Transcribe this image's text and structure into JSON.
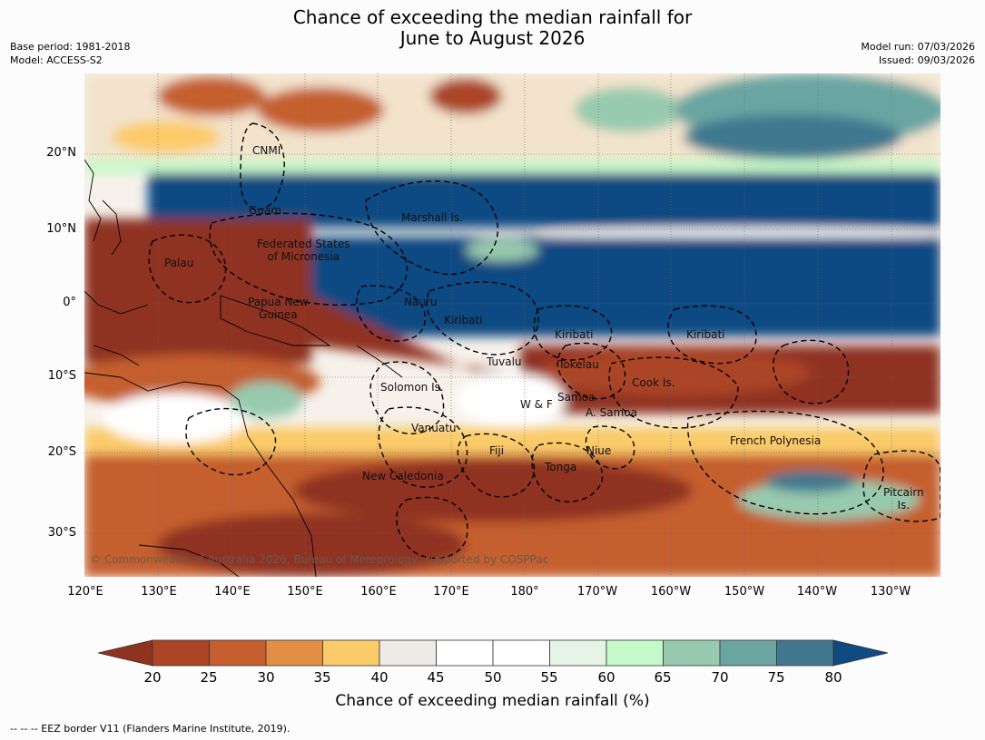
{
  "title": "Chance of exceeding the median rainfall for\nJune to August 2026",
  "base_period": "Base period: 1981-2018",
  "model": "Model: ACCESS-S2",
  "model_run": "Model run: 07/03/2026",
  "issued": "Issued: 09/03/2026",
  "lat_labels": [
    "20°N",
    "10°N",
    "0°",
    "10°S",
    "20°S",
    "30°S"
  ],
  "lon_labels": [
    "120°E",
    "130°E",
    "140°E",
    "150°E",
    "160°E",
    "170°E",
    "180°",
    "170°W",
    "160°W",
    "150°W",
    "140°W",
    "130°W"
  ],
  "places": [
    "CNMI",
    "Guam",
    "Marshall Is.",
    "Federated States\nof Micronesia",
    "Palau",
    "Papua New\nGuinea",
    "Nauru",
    "Kiribati",
    "Kiribati",
    "Kiribati",
    "Tuvalu",
    "Tokelau",
    "Solomon Is.",
    "Samoa",
    "W & F",
    "A. Samoa",
    "Cook Is.",
    "Vanuatu",
    "Fiji",
    "Niue",
    "French Polynesia",
    "Tonga",
    "New Caledonia",
    "Pitcairn\nIs."
  ],
  "copyright": "© Commonwealth of Australia 2026, Bureau of Meteorology, supported by COSPPac",
  "colorbar": {
    "ticks": [
      "20",
      "25",
      "30",
      "35",
      "40",
      "45",
      "50",
      "55",
      "60",
      "65",
      "70",
      "75",
      "80"
    ],
    "colors": [
      "#8f3320",
      "#ac4525",
      "#c55f2e",
      "#e08f44",
      "#fbcb6a",
      "#eeeae6",
      "#ffffff",
      "#ffffff",
      "#e6f4e6",
      "#c6f9c9",
      "#98caaf",
      "#6aa5a2",
      "#41788f",
      "#0f4a82"
    ],
    "label": "Chance of exceeding median rainfall (%)"
  },
  "footnote": "--  --  -- EEZ border V11 (Flanders Marine Institute, 2019)."
}
